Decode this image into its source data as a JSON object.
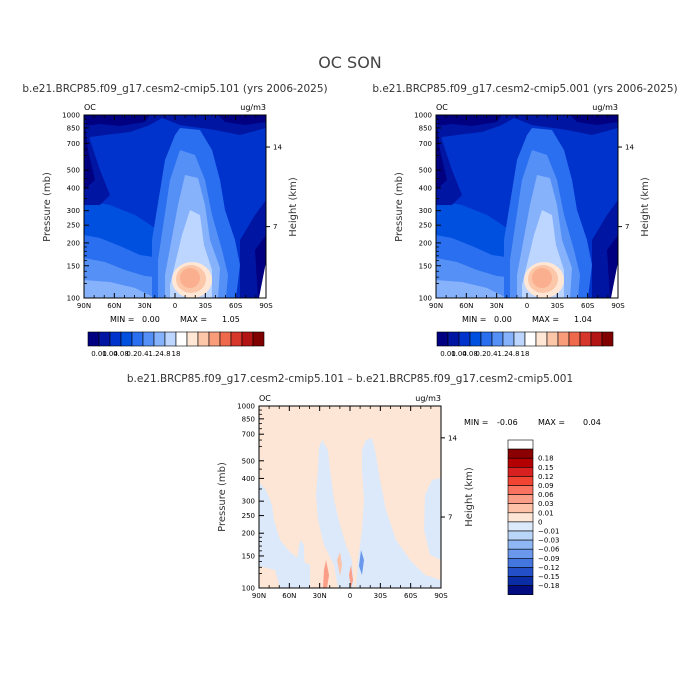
{
  "figure": {
    "title": "OC SON"
  },
  "colors": {
    "abs_scale": [
      "#000080",
      "#0016a3",
      "#0033cc",
      "#0050e0",
      "#2a6ff0",
      "#5590f7",
      "#86b2fb",
      "#bcd6ff",
      "#ffffff",
      "#ffe6d5",
      "#fcc6a8",
      "#f89c7a",
      "#ef6a4d",
      "#d7362a",
      "#b31515",
      "#800000"
    ],
    "diff_scale": [
      "#ffffff",
      "#8b0000",
      "#b30000",
      "#d92020",
      "#f24433",
      "#fa7360",
      "#fb9e88",
      "#fdc2a8",
      "#fde6d6",
      "#dbe9fb",
      "#b9d5f8",
      "#8fb7f3",
      "#6a98ec",
      "#4476e0",
      "#2350c8",
      "#0a2da6",
      "#000c80"
    ]
  },
  "chart_data": [
    {
      "type": "heatmap",
      "panel": "left",
      "title": "b.e21.BRCP85.f09_g17.cesm2-cmip5.101 (yrs 2006-2025)",
      "corner_left": "OC",
      "corner_right": "ug/m3",
      "ylabel": "Pressure (mb)",
      "y2label": "Height (km)",
      "yticks": [
        "100",
        "150",
        "200",
        "250",
        "300",
        "400",
        "500",
        "700",
        "850",
        "1000"
      ],
      "y2ticks": [
        "14",
        "7"
      ],
      "xticks": [
        "90N",
        "60N",
        "30N",
        "0",
        "30S",
        "60S",
        "90S"
      ],
      "stats": {
        "min_label": "MIN =",
        "min": "0.00",
        "max_label": "MAX =",
        "max": "1.05"
      },
      "colorbar_labels": [
        "0.01",
        "0.04",
        "0.08",
        "0.2",
        "0.4",
        "1.2",
        "4.8",
        "18"
      ],
      "ylim": [
        1000,
        100
      ],
      "xlim": [
        90,
        -90
      ]
    },
    {
      "type": "heatmap",
      "panel": "right",
      "title": "b.e21.BRCP85.f09_g17.cesm2-cmip5.001 (yrs 2006-2025)",
      "corner_left": "OC",
      "corner_right": "ug/m3",
      "ylabel": "Pressure (mb)",
      "y2label": "Height (km)",
      "yticks": [
        "100",
        "150",
        "200",
        "250",
        "300",
        "400",
        "500",
        "700",
        "850",
        "1000"
      ],
      "y2ticks": [
        "14",
        "7"
      ],
      "xticks": [
        "90N",
        "60N",
        "30N",
        "0",
        "30S",
        "60S",
        "90S"
      ],
      "stats": {
        "min_label": "MIN =",
        "min": "0.00",
        "max_label": "MAX =",
        "max": "1.04"
      },
      "colorbar_labels": [
        "0.01",
        "0.04",
        "0.08",
        "0.2",
        "0.4",
        "1.2",
        "4.8",
        "18"
      ],
      "ylim": [
        1000,
        100
      ],
      "xlim": [
        90,
        -90
      ]
    },
    {
      "type": "heatmap",
      "panel": "difference",
      "title": "b.e21.BRCP85.f09_g17.cesm2-cmip5.101 – b.e21.BRCP85.f09_g17.cesm2-cmip5.001",
      "corner_left": "OC",
      "corner_right": "ug/m3",
      "ylabel": "Pressure (mb)",
      "y2label": "Height (km)",
      "yticks": [
        "100",
        "150",
        "200",
        "250",
        "300",
        "400",
        "500",
        "700",
        "850",
        "1000"
      ],
      "y2ticks": [
        "14",
        "7"
      ],
      "xticks": [
        "90N",
        "60N",
        "30N",
        "0",
        "30S",
        "60S",
        "90S"
      ],
      "stats": {
        "min_label": "MIN =",
        "min": "-0.06",
        "max_label": "MAX =",
        "max": "0.04"
      },
      "colorbar_labels": [
        "0.18",
        "0.15",
        "0.12",
        "0.09",
        "0.06",
        "0.03",
        "0.01",
        "0",
        "−0.01",
        "−0.03",
        "−0.06",
        "−0.09",
        "−0.12",
        "−0.15",
        "−0.18"
      ],
      "ylim": [
        1000,
        100
      ],
      "xlim": [
        90,
        -90
      ]
    }
  ]
}
